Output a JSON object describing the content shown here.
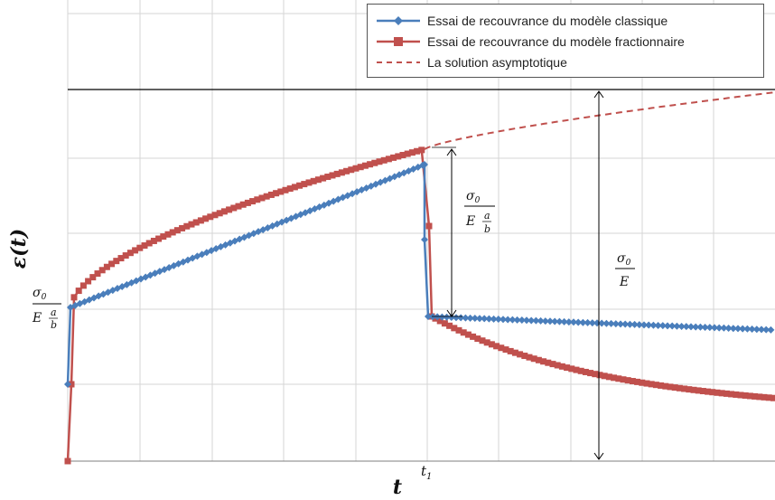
{
  "chart_data": {
    "type": "line",
    "xlabel": "t",
    "ylabel": "ε(t)",
    "x_tick_label": "t",
    "x_tick_sub": "1",
    "y_annotation": {
      "num": "σ",
      "num_sub": "0",
      "den": "E",
      "frac_num": "a",
      "frac_den": "b"
    },
    "annotation_mid": {
      "num": "σ",
      "num_sub": "0",
      "den": "E",
      "frac_num": "a",
      "frac_den": "b"
    },
    "annotation_full": {
      "num": "σ",
      "num_sub": "0",
      "den": "E"
    },
    "grid": true,
    "legend_position": "top-right",
    "colors": {
      "classique": "#4a7ebb",
      "fractionnaire": "#c0504d",
      "asymptotique": "#c0504d"
    },
    "series": [
      {
        "name": "Essai de recouvrance du modèle classique"
      },
      {
        "name": "Essai de recouvrance du modèle fractionnaire"
      },
      {
        "name": "La solution asymptotique"
      }
    ]
  }
}
